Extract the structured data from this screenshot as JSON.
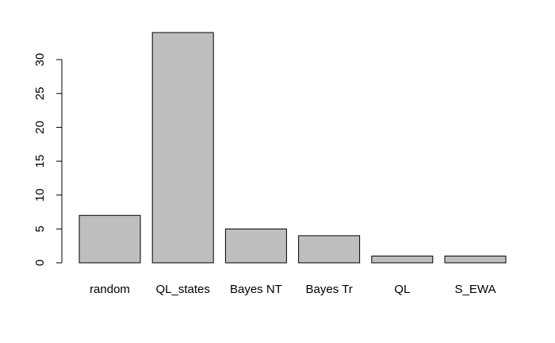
{
  "chart_data": {
    "type": "bar",
    "categories": [
      "random",
      "QL_states",
      "Bayes NT",
      "Bayes Tr",
      "QL",
      "S_EWA"
    ],
    "values": [
      7,
      34,
      5,
      4,
      1,
      1
    ],
    "yticks": [
      0,
      5,
      10,
      15,
      20,
      25,
      30
    ],
    "ylim": [
      0,
      34
    ],
    "bar_color": "#bebebe",
    "edge_color": "#000000",
    "grid": false,
    "title": "",
    "xlabel": "",
    "ylabel": ""
  }
}
